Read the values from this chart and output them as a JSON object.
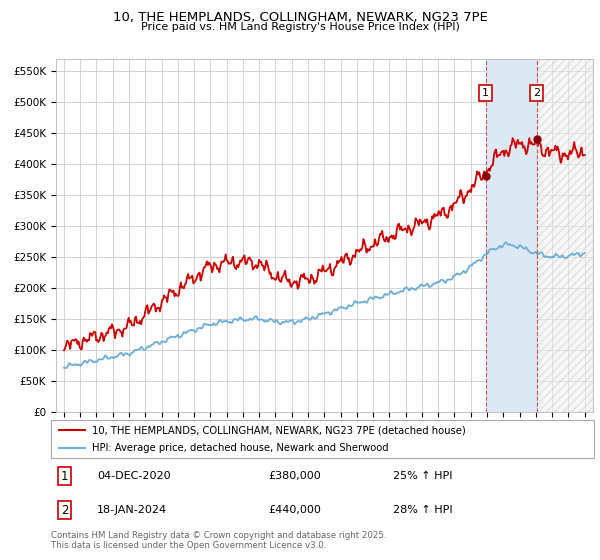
{
  "title": "10, THE HEMPLANDS, COLLINGHAM, NEWARK, NG23 7PE",
  "subtitle": "Price paid vs. HM Land Registry's House Price Index (HPI)",
  "hpi_color": "#6baed6",
  "property_color": "#cc0000",
  "sale1_date": 2020.92,
  "sale1_price": 380000,
  "sale1_label": "1",
  "sale1_pct": "25% ↑ HPI",
  "sale1_date_str": "04-DEC-2020",
  "sale2_date": 2024.05,
  "sale2_price": 440000,
  "sale2_label": "2",
  "sale2_pct": "28% ↑ HPI",
  "sale2_date_str": "18-JAN-2024",
  "ylim": [
    0,
    570000
  ],
  "xlim": [
    1994.5,
    2027.5
  ],
  "legend_line1": "10, THE HEMPLANDS, COLLINGHAM, NEWARK, NG23 7PE (detached house)",
  "legend_line2": "HPI: Average price, detached house, Newark and Sherwood",
  "footer": "Contains HM Land Registry data © Crown copyright and database right 2025.\nThis data is licensed under the Open Government Licence v3.0.",
  "yticks": [
    0,
    50000,
    100000,
    150000,
    200000,
    250000,
    300000,
    350000,
    400000,
    450000,
    500000,
    550000
  ],
  "ytick_labels": [
    "£0",
    "£50K",
    "£100K",
    "£150K",
    "£200K",
    "£250K",
    "£300K",
    "£350K",
    "£400K",
    "£450K",
    "£500K",
    "£550K"
  ],
  "background_color": "#ffffff",
  "grid_color": "#cccccc",
  "shade_color": "#dce9f5",
  "hatch_color": "#dddddd"
}
